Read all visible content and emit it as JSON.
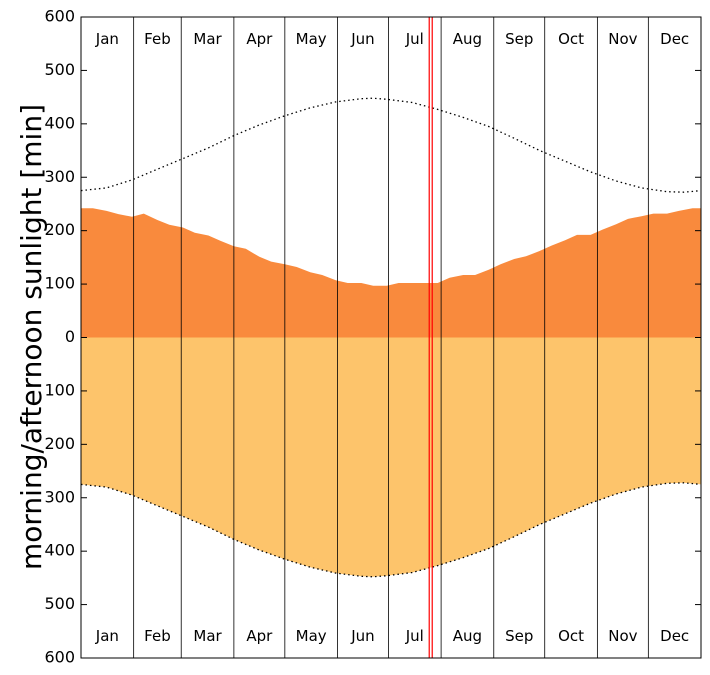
{
  "chart_data": {
    "type": "area",
    "ylabel": "morning/afternoon sunlight [min]",
    "y_ticks": [
      "600",
      "500",
      "400",
      "300",
      "200",
      "100",
      "0",
      "100",
      "200",
      "300",
      "400",
      "500",
      "600"
    ],
    "ylim": [
      -600,
      600
    ],
    "months": [
      "Jan",
      "Feb",
      "Mar",
      "Apr",
      "May",
      "Jun",
      "Jul",
      "Aug",
      "Sep",
      "Oct",
      "Nov",
      "Dec"
    ],
    "x_unit": "day of year",
    "xlim": [
      0,
      365
    ],
    "month_starts": [
      0,
      31,
      59,
      90,
      120,
      151,
      181,
      212,
      243,
      273,
      304,
      334,
      365
    ],
    "current_day_marker": 205,
    "colors": {
      "afternoon": "#f98a3d",
      "morning": "#fdc46b",
      "marker": "#ff0000"
    },
    "series": [
      {
        "role": "afternoon sunlight (above zero)",
        "x": [
          0,
          7,
          15,
          22,
          30,
          37,
          45,
          52,
          60,
          67,
          75,
          82,
          90,
          97,
          105,
          112,
          120,
          127,
          135,
          142,
          150,
          157,
          165,
          172,
          180,
          187,
          195,
          202,
          210,
          217,
          225,
          232,
          240,
          247,
          255,
          262,
          270,
          277,
          285,
          292,
          300,
          307,
          315,
          322,
          330,
          337,
          345,
          352,
          360,
          365
        ],
        "values": [
          242,
          242,
          237,
          231,
          226,
          232,
          220,
          211,
          206,
          196,
          191,
          181,
          171,
          166,
          151,
          142,
          137,
          132,
          122,
          117,
          107,
          102,
          102,
          97,
          97,
          102,
          102,
          102,
          102,
          112,
          117,
          117,
          127,
          137,
          147,
          152,
          162,
          172,
          182,
          192,
          192,
          202,
          212,
          222,
          227,
          232,
          232,
          237,
          242,
          242
        ]
      },
      {
        "role": "morning sunlight (below zero)",
        "x": [
          0,
          15,
          30,
          45,
          60,
          75,
          90,
          105,
          120,
          135,
          150,
          165,
          172,
          180,
          195,
          210,
          225,
          240,
          255,
          270,
          285,
          300,
          315,
          330,
          345,
          355,
          365
        ],
        "values": [
          -275,
          -280,
          -295,
          -315,
          -335,
          -355,
          -378,
          -398,
          -415,
          -430,
          -441,
          -447,
          -448,
          -446,
          -440,
          -427,
          -412,
          -395,
          -373,
          -350,
          -330,
          -310,
          -293,
          -280,
          -273,
          -272,
          -275
        ]
      },
      {
        "role": "daylight outline (dotted, above zero)",
        "x": [
          0,
          15,
          30,
          45,
          60,
          75,
          90,
          105,
          120,
          135,
          150,
          165,
          172,
          180,
          195,
          210,
          225,
          240,
          255,
          270,
          285,
          300,
          315,
          330,
          345,
          355,
          365
        ],
        "values": [
          275,
          280,
          295,
          315,
          335,
          355,
          378,
          398,
          415,
          430,
          441,
          447,
          448,
          446,
          440,
          427,
          412,
          395,
          373,
          350,
          330,
          310,
          293,
          280,
          273,
          272,
          275
        ]
      }
    ]
  }
}
